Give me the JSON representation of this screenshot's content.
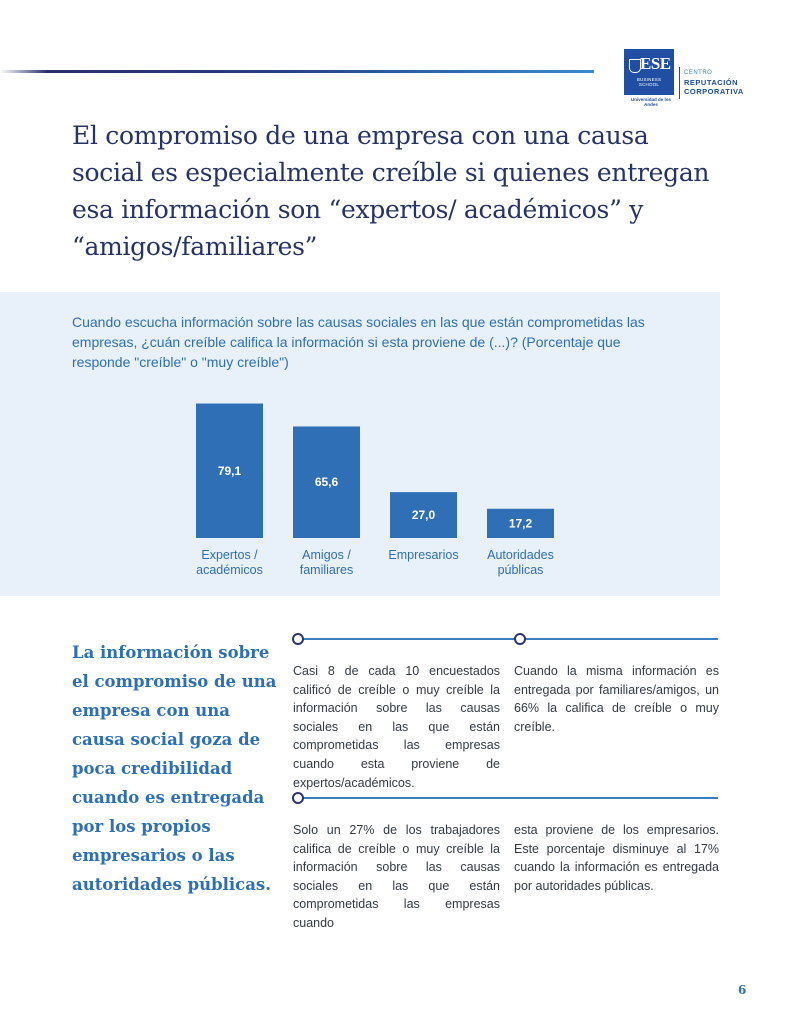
{
  "header": {
    "logo": {
      "name": "ESE",
      "subtitle": "BUSINESS SCHOOL",
      "university": "Universidad de los Andes",
      "center_line1": "CENTRO",
      "center_line2": "REPUTACIÓN",
      "center_line3": "CORPORATIVA"
    }
  },
  "title": "El compromiso de una empresa con una causa social es especialmente creíble si quienes entregan esa información son “expertos/ académicos” y “amigos/familiares”",
  "chart": {
    "question": "Cuando escucha información sobre las causas sociales en las que están comprometidas las empresas, ¿cuán creíble califica la información si esta proviene de (...)? (Porcentaje que responde \"creíble\" o \"muy creíble\")"
  },
  "chart_data": {
    "type": "bar",
    "categories": [
      [
        "Expertos /",
        "académicos"
      ],
      [
        "Amigos /",
        "familiares"
      ],
      [
        "Empresarios"
      ],
      [
        "Autoridades",
        "públicas"
      ]
    ],
    "values": [
      79.1,
      65.6,
      27.0,
      17.2
    ],
    "value_labels": [
      "79,1",
      "65,6",
      "27,0",
      "17,2"
    ],
    "bar_color": "#2f6fb6",
    "ylim": [
      0,
      80
    ],
    "grid": false
  },
  "side_quote": "La información sobre el compromiso de una empresa con una causa social goza de poca credibilidad cuando es entregada por los propios empresarios o las autoridades públicas.",
  "body": {
    "p1": "Casi 8 de cada 10 encuestados calificó de creíble o muy creíble la información sobre las causas sociales en las que están comprometidas las empresas cuando esta proviene de expertos/académicos.",
    "p2": "Cuando la misma información es entregada por familiares/amigos, un 66% la califica de creíble o muy creíble.",
    "p3": "Solo un 27% de los trabajadores califica de creíble o muy creíble la información sobre las causas sociales en las que están comprometidas las empresas cuando",
    "p4": "esta proviene de los empresarios. Este porcentaje disminuye al 17% cuando la información es entregada por autoridades públicas."
  },
  "page_number": "6",
  "colors": {
    "title": "#263367",
    "accent": "#2d6fb7",
    "panel": "#e8f1f9",
    "bar": "#2f6fb6"
  }
}
